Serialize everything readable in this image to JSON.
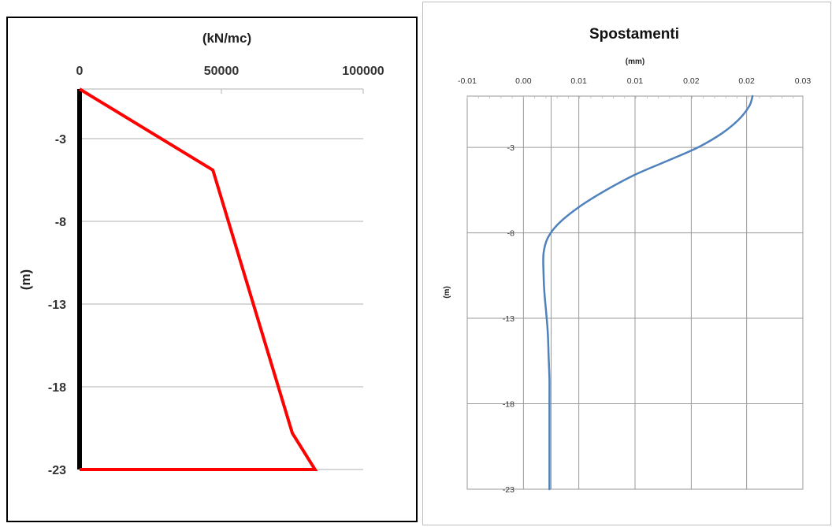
{
  "charts": {
    "left": {
      "chart_data": {
        "type": "line",
        "title": "",
        "xlabel": "(kN/mc)",
        "ylabel": "(m)",
        "xlim": [
          0,
          100000
        ],
        "ylim": [
          -23,
          0
        ],
        "x_ticks": [
          "0",
          "50000",
          "100000"
        ],
        "x_tick_values": [
          0,
          50000,
          100000
        ],
        "y_ticks": [
          "-3",
          "-8",
          "-13",
          "-18",
          "-23"
        ],
        "y_tick_values": [
          -3,
          -8,
          -13,
          -18,
          -23
        ],
        "grid": "horizontal",
        "series": [
          {
            "color": "#ff0000",
            "x": [
              0,
              47000,
              75000,
              83000,
              0
            ],
            "y": [
              0,
              -4.9,
              -20.8,
              -23,
              -23
            ]
          },
          {
            "color": "#000000",
            "x": [
              0,
              0
            ],
            "y": [
              0,
              -23
            ]
          }
        ]
      }
    },
    "right": {
      "chart_data": {
        "type": "line",
        "title": "Spostamenti",
        "xlabel": "(mm)",
        "ylabel": "(m)",
        "xlim": [
          -0.01,
          0.03
        ],
        "ylim": [
          -23,
          0
        ],
        "x_ticks": [
          "-0.01",
          "0.00",
          "0.01",
          "0.01",
          "0.02",
          "0.02",
          "0.03"
        ],
        "x_tick_values": [
          -0.01,
          -0.0033,
          0.0033,
          0.01,
          0.0167,
          0.0233,
          0.03
        ],
        "y_ticks": [
          "-3",
          "-8",
          "-13",
          "-18",
          "-23"
        ],
        "y_tick_values": [
          -3,
          -8,
          -13,
          -18,
          -23
        ],
        "grid": "both",
        "series": [
          {
            "color": "#4f81bd",
            "x": [
              0.024,
              0.0236,
              0.0223,
              0.0203,
              0.0175,
              0.0138,
              0.01,
              0.0062,
              0.003,
              0.0008,
              -0.0004,
              -0.0009,
              -0.0009,
              -0.0008,
              -0.0006,
              -0.0004,
              -0.0003,
              -0.0002,
              -0.0002,
              -0.0002,
              -0.0002,
              -0.0002
            ],
            "y": [
              0,
              -0.6,
              -1.4,
              -2.2,
              -3.0,
              -3.8,
              -4.6,
              -5.6,
              -6.6,
              -7.5,
              -8.3,
              -9.2,
              -10.4,
              -11.5,
              -12.6,
              -13.8,
              -15.2,
              -16.6,
              -18.0,
              -19.6,
              -21.2,
              -23.0
            ]
          }
        ]
      }
    }
  }
}
